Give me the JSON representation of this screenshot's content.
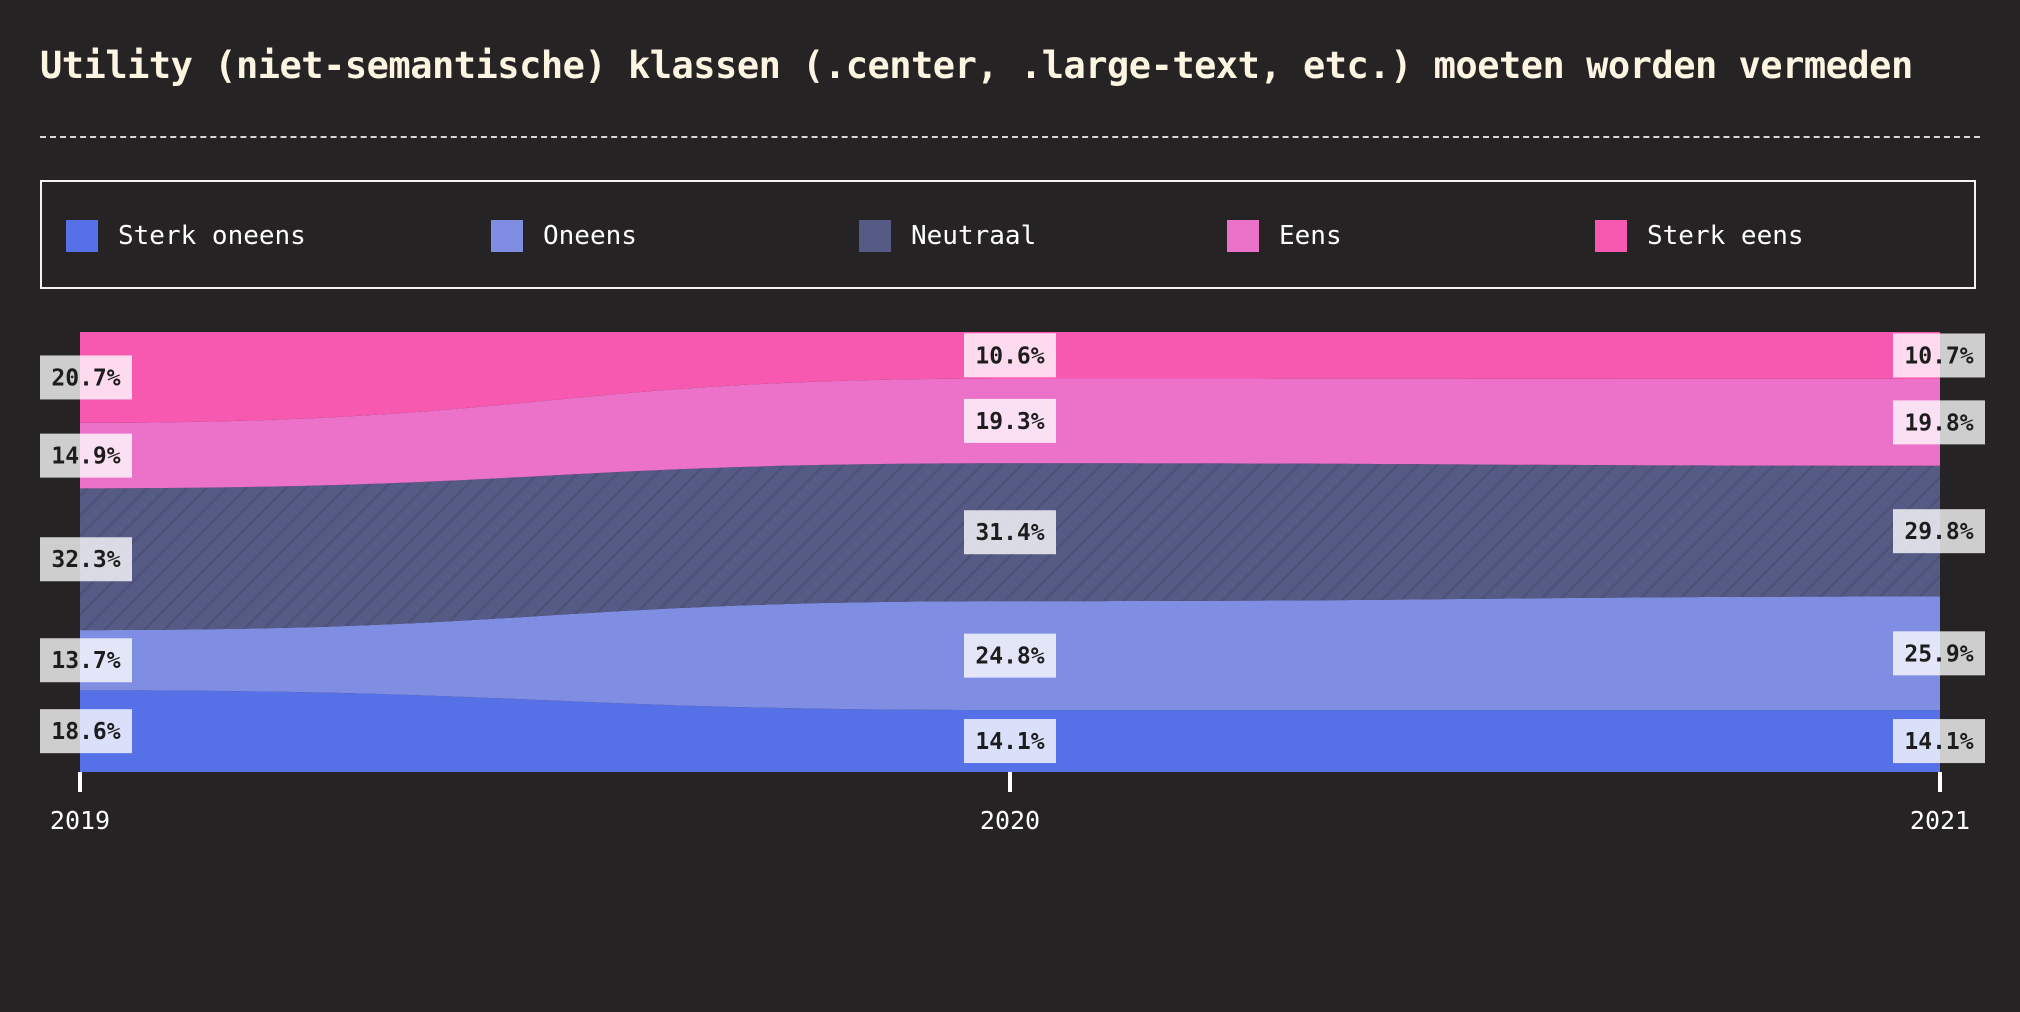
{
  "chart_data": {
    "type": "area",
    "title": "Utility (niet-semantische) klassen (.center, .large-text, etc.) moeten worden vermeden",
    "x": [
      "2019",
      "2020",
      "2021"
    ],
    "stacked": true,
    "normalized": true,
    "legend_position": "top",
    "series": [
      {
        "name": "Sterk oneens",
        "color": "#5670e8",
        "values": [
          18.6,
          14.1,
          14.1
        ],
        "labels": [
          "18.6%",
          "14.1%",
          "14.1%"
        ]
      },
      {
        "name": "Oneens",
        "color": "#7f8de2",
        "values": [
          13.7,
          24.8,
          25.9
        ],
        "labels": [
          "13.7%",
          "24.8%",
          "25.9%"
        ]
      },
      {
        "name": "Neutraal",
        "color": "#565b86",
        "pattern": "diagonal-hatch",
        "values": [
          32.3,
          31.4,
          29.8
        ],
        "labels": [
          "32.3%",
          "31.4%",
          "29.8%"
        ]
      },
      {
        "name": "Eens",
        "color": "#eb71c9",
        "values": [
          14.9,
          19.3,
          19.8
        ],
        "labels": [
          "14.9%",
          "19.3%",
          "19.8%"
        ]
      },
      {
        "name": "Sterk eens",
        "color": "#f859b0",
        "values": [
          20.7,
          10.6,
          10.7
        ],
        "labels": [
          "20.7%",
          "10.6%",
          "10.7%"
        ]
      }
    ]
  }
}
